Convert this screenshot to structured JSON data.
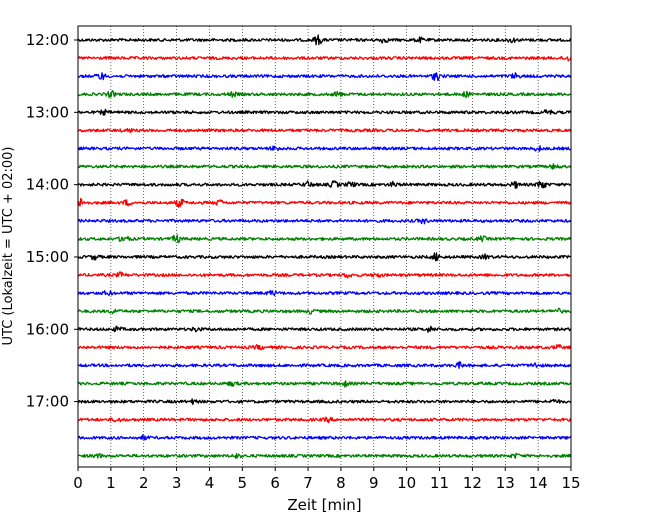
{
  "chart_data": {
    "type": "line",
    "title": "",
    "xlabel": "Zeit  [min]",
    "ylabel": "UTC (Lokalzeit = UTC + 02:00)",
    "xlim": [
      0,
      15
    ],
    "x_ticks": [
      0,
      1,
      2,
      3,
      4,
      5,
      6,
      7,
      8,
      9,
      10,
      11,
      12,
      13,
      14,
      15
    ],
    "y_tick_labels": [
      "12:00",
      "13:00",
      "14:00",
      "15:00",
      "16:00",
      "17:00"
    ],
    "grid": "vertical dotted lines at each minute",
    "trace_interval_min": 15,
    "trace_colors": [
      "#000000",
      "#ff0000",
      "#0000ff",
      "#008000"
    ],
    "traces": [
      {
        "start": "12:00",
        "color": "#000000",
        "events": [
          [
            7.3,
            3.0
          ],
          [
            9.3,
            1.5
          ],
          [
            10.4,
            1.3
          ],
          [
            13.2,
            1.3
          ]
        ]
      },
      {
        "start": "12:15",
        "color": "#ff0000",
        "events": [
          [
            14.9,
            1.5
          ]
        ]
      },
      {
        "start": "12:30",
        "color": "#0000ff",
        "events": [
          [
            0.7,
            2.2
          ],
          [
            10.9,
            2.6
          ],
          [
            13.3,
            1.6
          ]
        ]
      },
      {
        "start": "12:45",
        "color": "#008000",
        "events": [
          [
            1.0,
            1.8
          ],
          [
            4.7,
            1.3
          ],
          [
            7.9,
            1.5
          ],
          [
            11.8,
            1.4
          ]
        ]
      },
      {
        "start": "13:00",
        "color": "#000000",
        "events": [
          [
            0.8,
            1.3
          ],
          [
            14.3,
            1.6
          ]
        ]
      },
      {
        "start": "13:15",
        "color": "#ff0000",
        "events": [
          [
            1.5,
            1.2
          ]
        ]
      },
      {
        "start": "13:30",
        "color": "#0000ff",
        "events": [
          [
            6.0,
            1.4
          ],
          [
            14.0,
            1.4
          ]
        ]
      },
      {
        "start": "13:45",
        "color": "#008000",
        "events": [
          [
            14.5,
            1.3
          ]
        ]
      },
      {
        "start": "14:00",
        "color": "#000000",
        "events": [
          [
            7.0,
            1.8
          ],
          [
            7.8,
            2.0
          ],
          [
            8.3,
            1.6
          ],
          [
            9.6,
            1.4
          ],
          [
            13.3,
            1.8
          ],
          [
            14.1,
            3.0
          ]
        ]
      },
      {
        "start": "14:15",
        "color": "#ff0000",
        "events": [
          [
            0.1,
            2.8
          ],
          [
            1.5,
            1.6
          ],
          [
            3.1,
            2.6
          ],
          [
            4.3,
            1.5
          ]
        ]
      },
      {
        "start": "14:30",
        "color": "#0000ff",
        "events": [
          [
            10.5,
            1.3
          ]
        ]
      },
      {
        "start": "14:45",
        "color": "#008000",
        "events": [
          [
            1.4,
            2.6
          ],
          [
            3.0,
            2.5
          ],
          [
            12.3,
            1.4
          ]
        ]
      },
      {
        "start": "15:00",
        "color": "#000000",
        "events": [
          [
            0.5,
            1.4
          ],
          [
            10.9,
            2.4
          ],
          [
            12.4,
            1.3
          ]
        ]
      },
      {
        "start": "15:15",
        "color": "#ff0000",
        "events": [
          [
            1.3,
            1.3
          ],
          [
            8.2,
            1.3
          ],
          [
            9.1,
            1.3
          ]
        ]
      },
      {
        "start": "15:30",
        "color": "#0000ff",
        "events": [
          [
            5.9,
            1.4
          ],
          [
            0.9,
            1.2
          ]
        ]
      },
      {
        "start": "15:45",
        "color": "#008000",
        "events": [
          [
            1.1,
            1.2
          ],
          [
            7.1,
            1.2
          ],
          [
            14.6,
            1.3
          ]
        ]
      },
      {
        "start": "16:00",
        "color": "#000000",
        "events": [
          [
            1.2,
            1.4
          ],
          [
            10.7,
            1.6
          ],
          [
            3.6,
            1.2
          ]
        ]
      },
      {
        "start": "16:15",
        "color": "#ff0000",
        "events": [
          [
            5.5,
            1.2
          ],
          [
            14.6,
            1.2
          ]
        ]
      },
      {
        "start": "16:30",
        "color": "#0000ff",
        "events": [
          [
            11.6,
            1.6
          ],
          [
            13.9,
            1.4
          ]
        ]
      },
      {
        "start": "16:45",
        "color": "#008000",
        "events": [
          [
            8.1,
            1.7
          ],
          [
            4.7,
            1.2
          ]
        ]
      },
      {
        "start": "17:00",
        "color": "#000000",
        "events": [
          [
            3.5,
            1.2
          ],
          [
            14.5,
            1.2
          ]
        ]
      },
      {
        "start": "17:15",
        "color": "#ff0000",
        "events": [
          [
            1.2,
            1.2
          ],
          [
            7.6,
            1.2
          ]
        ]
      },
      {
        "start": "17:30",
        "color": "#0000ff",
        "events": [
          [
            2.0,
            1.1
          ]
        ]
      },
      {
        "start": "17:45",
        "color": "#008000",
        "events": [
          [
            0.6,
            1.2
          ],
          [
            4.8,
            1.2
          ],
          [
            13.3,
            1.2
          ]
        ]
      }
    ]
  }
}
